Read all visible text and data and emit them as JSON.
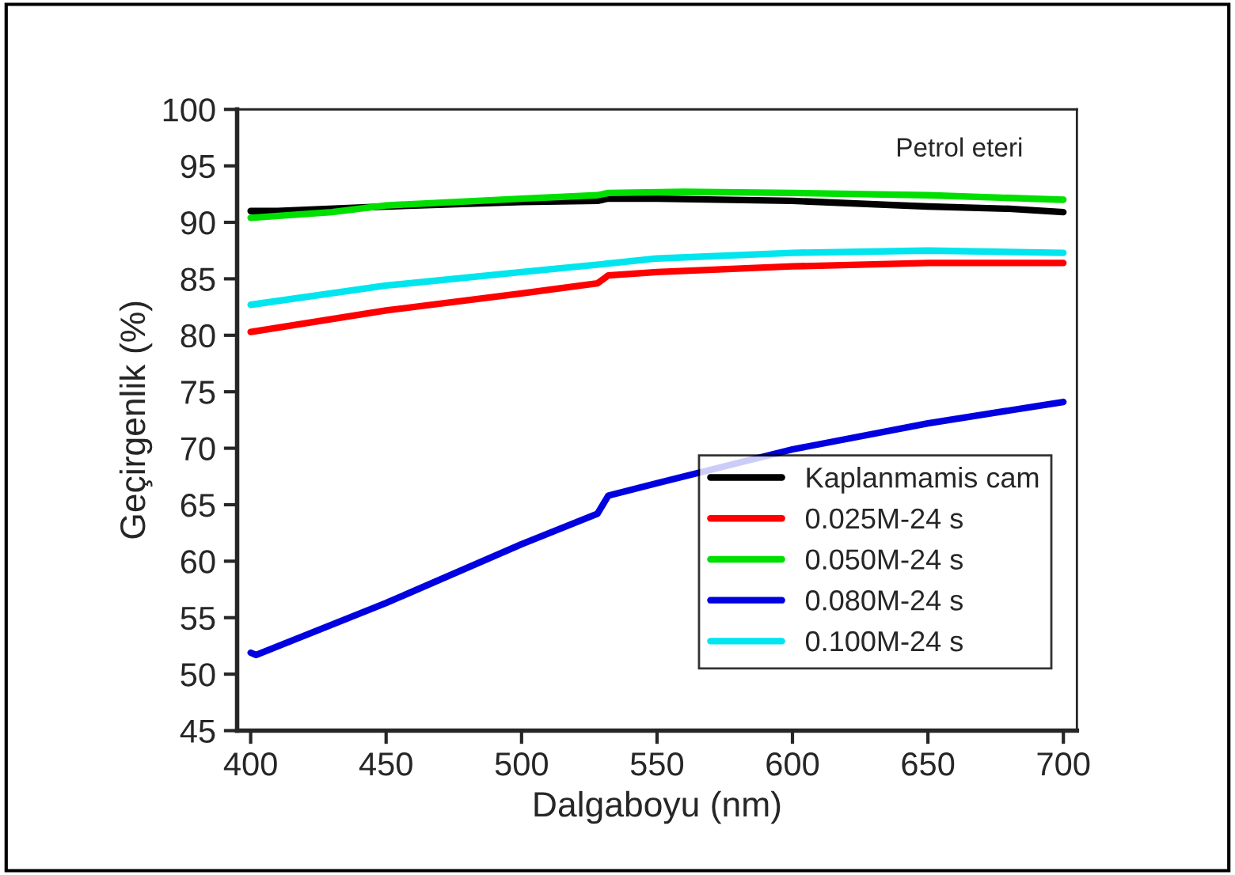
{
  "chart_data": {
    "type": "line",
    "xlabel": "Dalgaboyu (nm)",
    "ylabel": "Geçirgenlik (%)",
    "xlim": [
      395,
      705
    ],
    "ylim": [
      45,
      100
    ],
    "xticks": [
      400,
      450,
      500,
      550,
      600,
      650,
      700
    ],
    "yticks": [
      45,
      50,
      55,
      60,
      65,
      70,
      75,
      80,
      85,
      90,
      95,
      100
    ],
    "grid": false,
    "legend": "bottom right",
    "line_style": "solid",
    "marker": "none",
    "annotations": [
      "Petrol eteri"
    ],
    "series": [
      {
        "name": "Kaplanmamis cam",
        "color": "#000000",
        "x": [
          400,
          410,
          450,
          500,
          528,
          532,
          550,
          600,
          650,
          680,
          700
        ],
        "values": [
          91.0,
          91.0,
          91.4,
          91.8,
          91.9,
          92.1,
          92.1,
          91.9,
          91.4,
          91.2,
          90.9
        ]
      },
      {
        "name": "0.025M-24 s",
        "color": "#ff0000",
        "x": [
          400,
          450,
          500,
          528,
          532,
          550,
          600,
          650,
          700
        ],
        "values": [
          80.3,
          82.2,
          83.7,
          84.6,
          85.3,
          85.6,
          86.1,
          86.4,
          86.4
        ]
      },
      {
        "name": "0.050M-24 s",
        "color": "#00e000",
        "x": [
          400,
          430,
          450,
          500,
          528,
          532,
          560,
          600,
          650,
          700
        ],
        "values": [
          90.4,
          90.9,
          91.5,
          92.1,
          92.4,
          92.6,
          92.7,
          92.6,
          92.4,
          92.0
        ]
      },
      {
        "name": "0.080M-24 s",
        "color": "#0000e0",
        "x": [
          400,
          402,
          450,
          500,
          528,
          532,
          550,
          600,
          650,
          700
        ],
        "values": [
          51.9,
          51.7,
          56.3,
          61.5,
          64.2,
          65.8,
          66.9,
          69.9,
          72.2,
          74.1
        ]
      },
      {
        "name": "0.100M-24 s",
        "color": "#00e5ee",
        "x": [
          400,
          450,
          500,
          530,
          550,
          600,
          650,
          700
        ],
        "values": [
          82.7,
          84.4,
          85.6,
          86.3,
          86.8,
          87.3,
          87.5,
          87.3
        ]
      }
    ]
  }
}
